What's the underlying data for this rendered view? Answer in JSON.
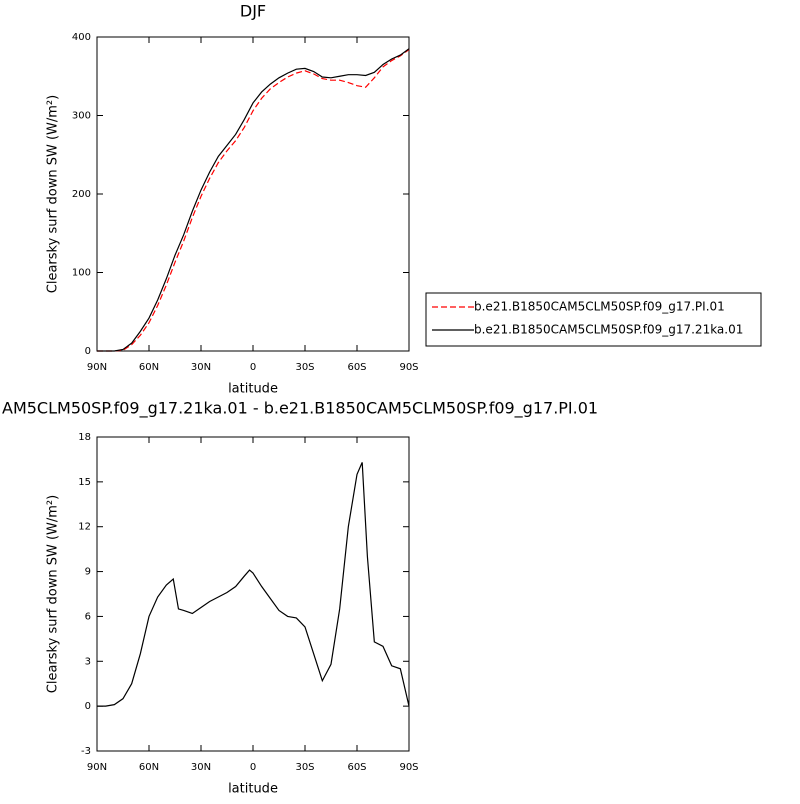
{
  "chart_data": [
    {
      "type": "line",
      "title": "DJF",
      "xlabel": "latitude",
      "ylabel": "Clearsky surf down SW (W/m²)",
      "x": [
        90,
        85,
        80,
        75,
        70,
        65,
        60,
        55,
        50,
        45,
        40,
        35,
        30,
        25,
        20,
        15,
        10,
        5,
        0,
        -5,
        -10,
        -15,
        -20,
        -25,
        -30,
        -35,
        -40,
        -45,
        -50,
        -55,
        -60,
        -65,
        -70,
        -75,
        -80,
        -85,
        -90
      ],
      "xlim": [
        90,
        -90
      ],
      "xticks": [
        {
          "value": 90,
          "label": "90N"
        },
        {
          "value": 60,
          "label": "60N"
        },
        {
          "value": 30,
          "label": "30N"
        },
        0,
        {
          "value": -30,
          "label": "30S"
        },
        {
          "value": -60,
          "label": "60S"
        },
        {
          "value": -90,
          "label": "90S"
        }
      ],
      "ylim": [
        0,
        400
      ],
      "yticks": [
        0,
        100,
        200,
        300,
        400
      ],
      "series": [
        {
          "name": "b.e21.B1850CAM5CLM50SP.f09_g17.PI.01",
          "color": "#ff0000",
          "dashed": true,
          "values": [
            0,
            0,
            0,
            1,
            8,
            20,
            36,
            58,
            84,
            113,
            140,
            170,
            197,
            220,
            240,
            255,
            268,
            285,
            306,
            322,
            334,
            342,
            349,
            354,
            357,
            353,
            347,
            345,
            345,
            342,
            338,
            336,
            348,
            362,
            370,
            376,
            384
          ]
        },
        {
          "name": "b.e21.B1850CAM5CLM50SP.f09_g17.21ka.01",
          "color": "#000000",
          "dashed": false,
          "values": [
            0,
            0,
            0,
            2,
            10,
            25,
            42,
            65,
            92,
            122,
            148,
            178,
            205,
            228,
            248,
            262,
            276,
            295,
            316,
            330,
            340,
            348,
            354,
            359,
            360,
            356,
            349,
            348,
            350,
            352,
            352,
            351,
            355,
            365,
            372,
            377,
            385
          ]
        }
      ]
    },
    {
      "type": "line",
      "title": "AM5CLM50SP.f09_g17.21ka.01 - b.e21.B1850CAM5CLM50SP.f09_g17.PI.01",
      "xlabel": "latitude",
      "ylabel": "Clearsky surf down SW (W/m²)",
      "x": [
        90,
        85,
        80,
        75,
        70,
        65,
        60,
        55,
        50,
        46,
        43,
        40,
        35,
        30,
        25,
        20,
        15,
        10,
        5,
        2,
        0,
        -5,
        -10,
        -15,
        -20,
        -25,
        -30,
        -35,
        -40,
        -45,
        -50,
        -55,
        -60,
        -63,
        -66,
        -70,
        -75,
        -80,
        -85,
        -90
      ],
      "values": [
        0,
        0,
        0.1,
        0.5,
        1.5,
        3.5,
        6,
        7.3,
        8.1,
        8.5,
        6.5,
        6.4,
        6.2,
        6.6,
        7.0,
        7.3,
        7.6,
        8.0,
        8.7,
        9.1,
        8.9,
        8.0,
        7.2,
        6.4,
        6.0,
        5.9,
        5.3,
        3.5,
        1.7,
        2.8,
        6.5,
        12,
        15.5,
        16.3,
        10,
        4.3,
        4,
        2.7,
        2.5,
        0
      ],
      "color": "#000000",
      "xlim": [
        90,
        -90
      ],
      "xticks": [
        {
          "value": 90,
          "label": "90N"
        },
        {
          "value": 60,
          "label": "60N"
        },
        {
          "value": 30,
          "label": "30N"
        },
        0,
        {
          "value": -30,
          "label": "30S"
        },
        {
          "value": -60,
          "label": "60S"
        },
        {
          "value": -90,
          "label": "90S"
        }
      ],
      "ylim": [
        -3,
        18
      ],
      "yticks": [
        -3,
        0,
        3,
        6,
        9,
        12,
        15,
        18
      ]
    }
  ]
}
